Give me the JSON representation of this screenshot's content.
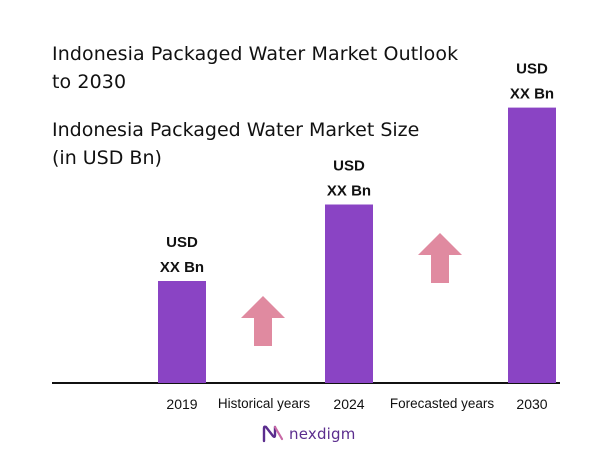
{
  "title": "Indonesia Packaged Water Market Outlook\nto 2030",
  "subtitle": "Indonesia Packaged Water Market Size\n(in USD Bn)",
  "brand": {
    "name": "nexdigm",
    "logo_icon": "nexdigm-logo-icon",
    "color": "#5b2d8e"
  },
  "colors": {
    "bar": "#8a44c4",
    "arrow": "#e08aa0",
    "axis": "#111111"
  },
  "chart_data": {
    "type": "bar",
    "categories": [
      "2019",
      "2024",
      "2030"
    ],
    "values": [
      1,
      1.75,
      2.7
    ],
    "value_labels": [
      "USD\nXX Bn",
      "USD\nXX Bn",
      "USD\nXX Bn"
    ],
    "annotations": [
      {
        "text": "Historical years",
        "between": [
          "2019",
          "2024"
        ],
        "icon": "up-arrow-icon"
      },
      {
        "text": "Forecasted years",
        "between": [
          "2024",
          "2030"
        ],
        "icon": "up-arrow-icon"
      }
    ],
    "grid": false,
    "legend": "none"
  }
}
